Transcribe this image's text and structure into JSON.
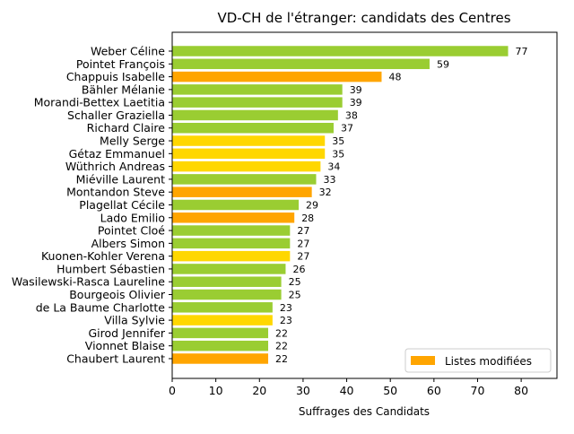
{
  "chart_data": {
    "type": "bar",
    "orientation": "horizontal",
    "title": "VD-CH de l'étranger: candidats des Centres",
    "xlabel": "Suffrages des Candidats",
    "ylabel": "",
    "xlim": [
      0,
      88.2
    ],
    "xticks": [
      0,
      10,
      20,
      30,
      40,
      50,
      60,
      70,
      80
    ],
    "grid": false,
    "legend": {
      "placement": "bottom-right",
      "entries": [
        {
          "label": "Listes modifiées",
          "color": "#ffa500"
        }
      ]
    },
    "categories": [
      "Weber Céline",
      "Pointet François",
      "Chappuis Isabelle",
      "Bähler Mélanie",
      "Morandi-Bettex Laetitia",
      "Schaller Graziella",
      "Richard Claire",
      "Melly Serge",
      "Gétaz Emmanuel",
      "Wüthrich Andreas",
      "Miéville Laurent",
      "Montandon Steve",
      "Plagellat Cécile",
      "Lado Emilio",
      "Pointet Cloé",
      "Albers Simon",
      "Kuonen-Kohler Verena",
      "Humbert Sébastien",
      "Wasilewski-Rasca Laureline",
      "Bourgeois Olivier",
      "de La Baume Charlotte",
      "Villa Sylvie",
      "Girod Jennifer",
      "Vionnet Blaise",
      "Chaubert Laurent"
    ],
    "values": [
      77,
      59,
      48,
      39,
      39,
      38,
      37,
      35,
      35,
      34,
      33,
      32,
      29,
      28,
      27,
      27,
      27,
      26,
      25,
      25,
      23,
      23,
      22,
      22,
      22
    ],
    "colors": [
      "#9acd32",
      "#9acd32",
      "#ffa500",
      "#9acd32",
      "#9acd32",
      "#9acd32",
      "#9acd32",
      "#ffd700",
      "#ffd700",
      "#ffd700",
      "#9acd32",
      "#ffa500",
      "#9acd32",
      "#ffa500",
      "#9acd32",
      "#9acd32",
      "#ffd700",
      "#9acd32",
      "#9acd32",
      "#9acd32",
      "#9acd32",
      "#ffd700",
      "#9acd32",
      "#9acd32",
      "#ffa500"
    ]
  }
}
